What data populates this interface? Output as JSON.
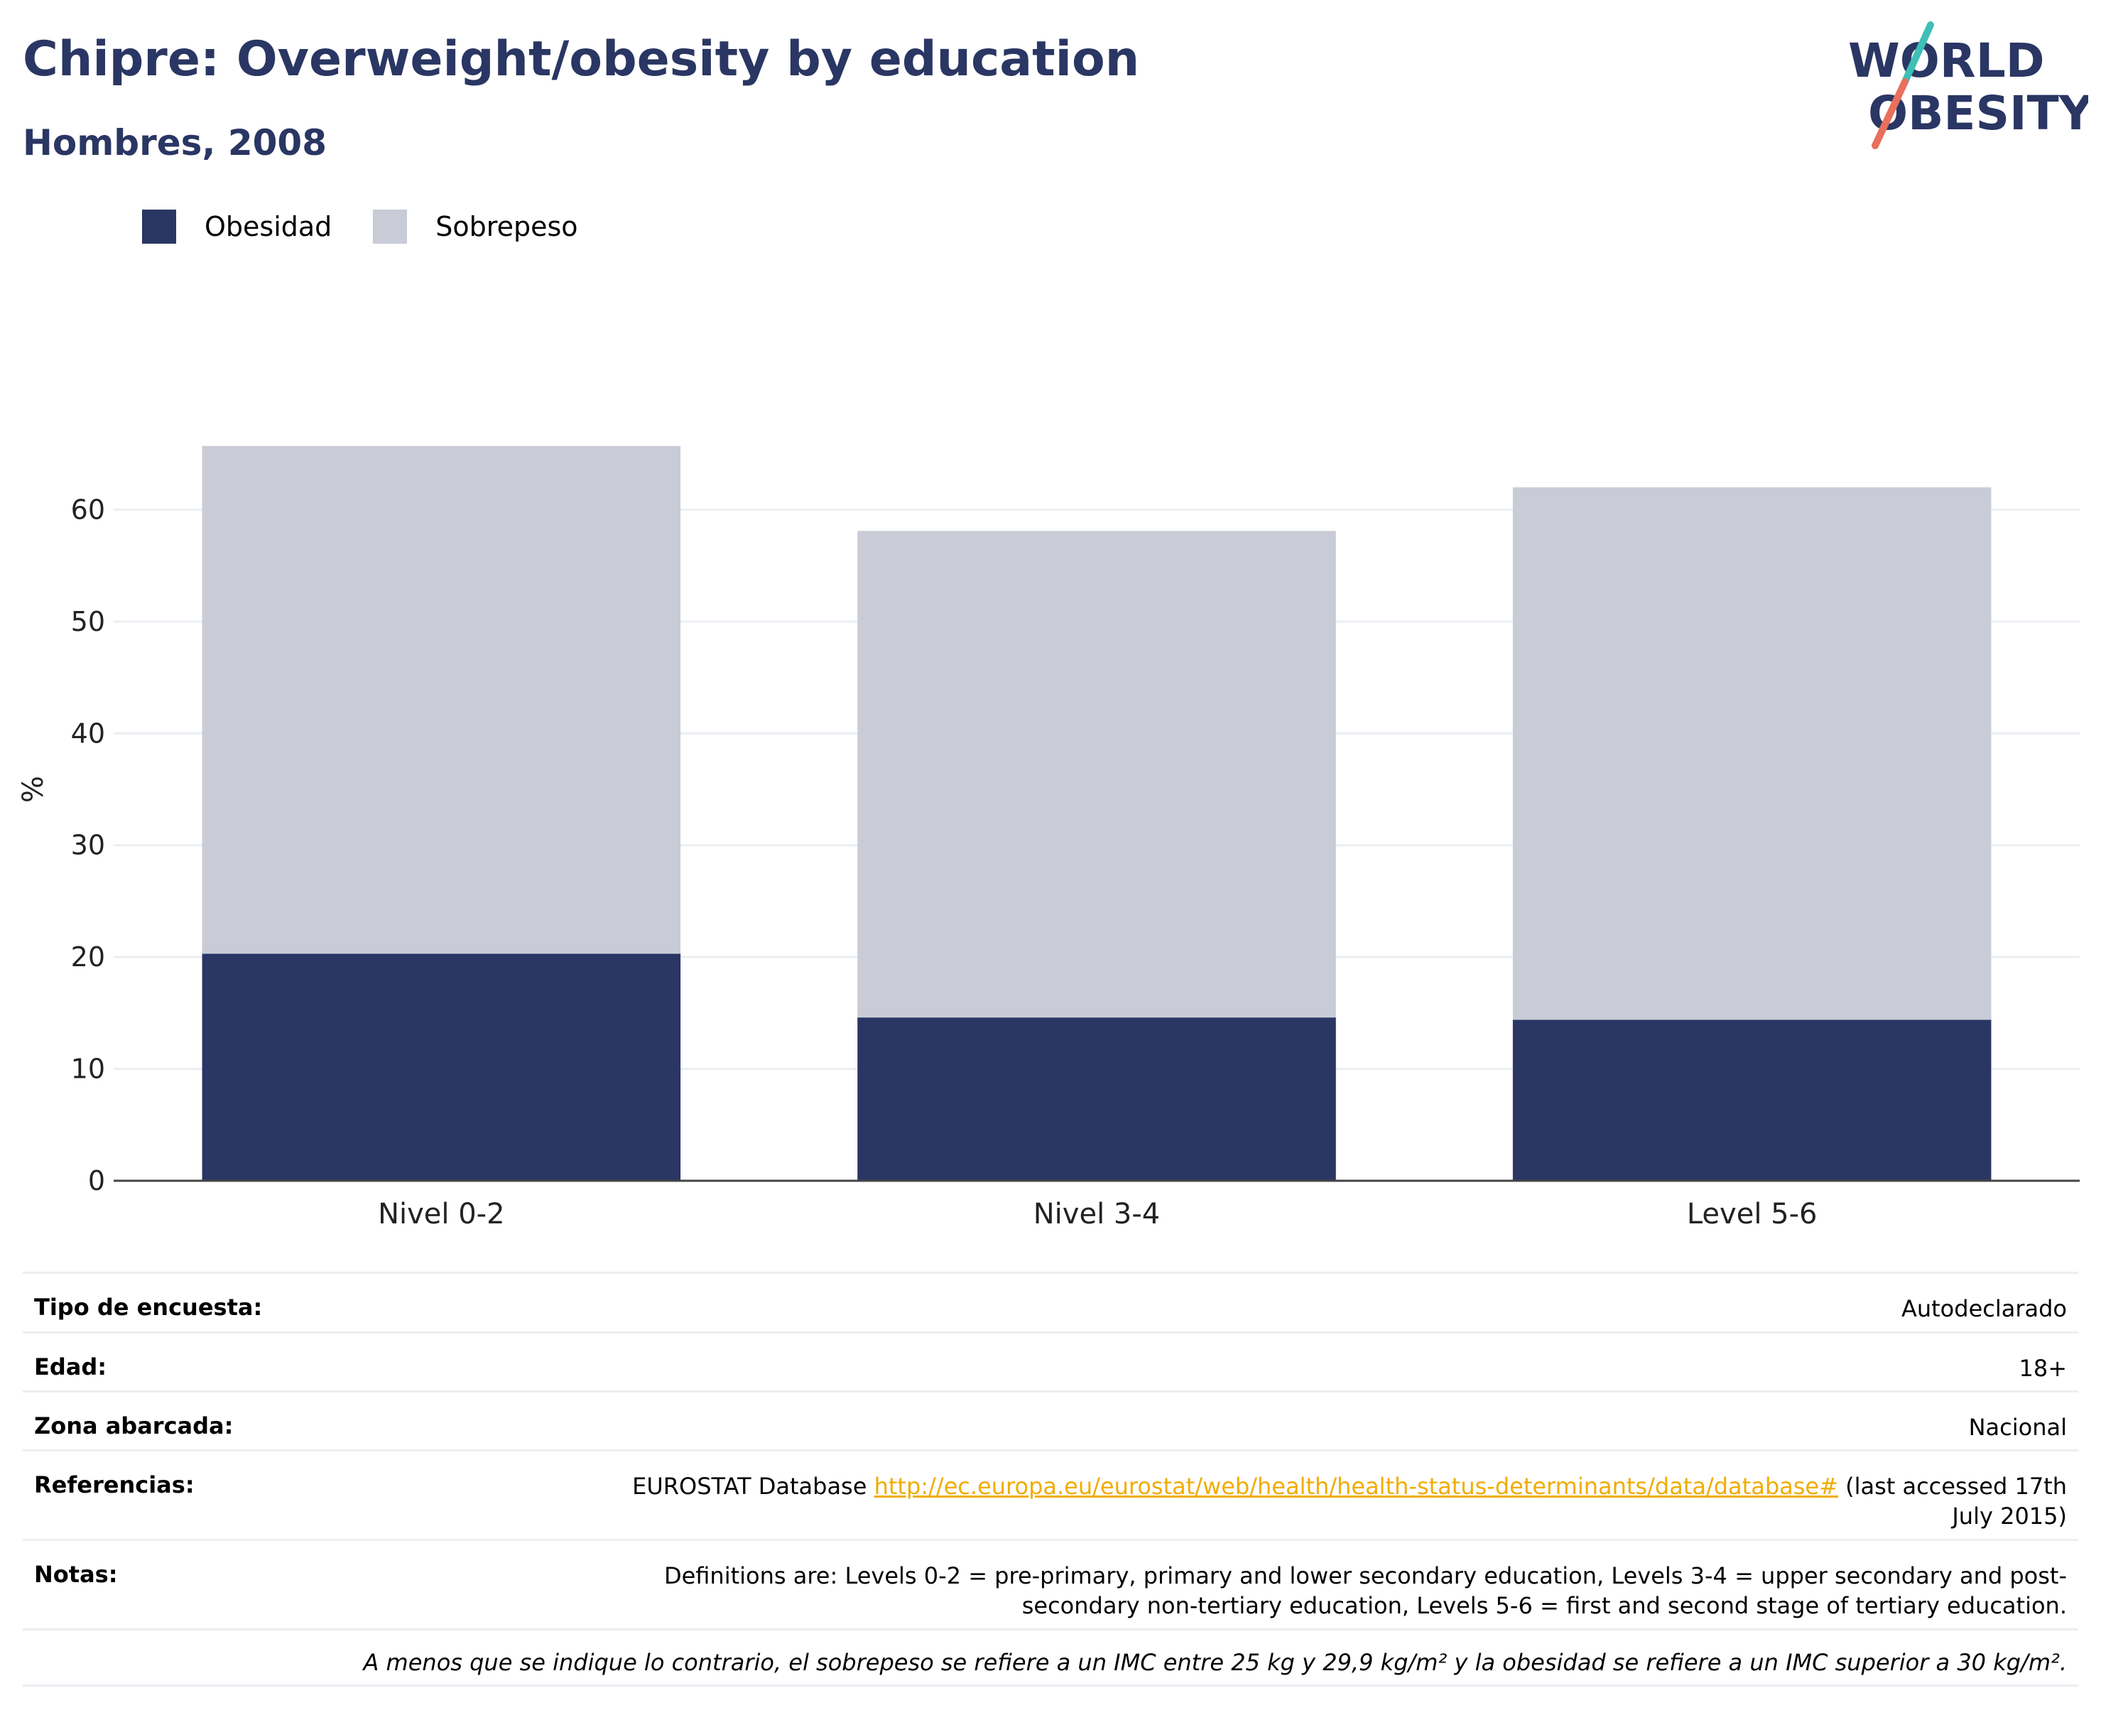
{
  "header": {
    "title": "Chipre: Overweight/obesity by education",
    "subtitle": "Hombres, 2008"
  },
  "logo": {
    "line1": "WORLD",
    "line2": "OBESITY"
  },
  "colors": {
    "obesity": "#2a3663",
    "overweight": "#c9ccd7",
    "accent_teal": "#3fbfb6",
    "accent_red": "#e8705d",
    "link": "#f0ac00"
  },
  "legend": [
    {
      "label": "Obesidad",
      "color": "#2a3663"
    },
    {
      "label": "Sobrepeso",
      "color": "#c9ccd7"
    }
  ],
  "chart_data": {
    "type": "bar",
    "stacked": true,
    "categories": [
      "Nivel 0-2",
      "Nivel 3-4",
      "Level 5-6"
    ],
    "series": [
      {
        "name": "Obesidad",
        "values": [
          20.3,
          14.6,
          14.4
        ]
      },
      {
        "name": "Sobrepeso",
        "values": [
          45.4,
          43.5,
          47.6
        ]
      }
    ],
    "ylabel": "%",
    "ylim": [
      0,
      70
    ],
    "yticks": [
      0,
      10,
      20,
      30,
      40,
      50,
      60
    ],
    "grid": true,
    "legend_position": "top-left"
  },
  "meta": {
    "rows": [
      {
        "key": "Tipo de encuesta:",
        "value": "Autodeclarado"
      },
      {
        "key": "Edad:",
        "value": "18+"
      },
      {
        "key": "Zona abarcada:",
        "value": "Nacional"
      }
    ],
    "references": {
      "key": "Referencias:",
      "prefix": "EUROSTAT Database ",
      "link": "http://ec.europa.eu/eurostat/web/health/health-status-determinants/data/database#",
      "suffix": " (last accessed 17th July 2015)"
    },
    "notes": {
      "key": "Notas:",
      "value": "Definitions are: Levels 0-2 = pre-primary, primary and lower secondary education, Levels 3-4 = upper secondary and post-secondary non-tertiary education, Levels 5-6 = first and second stage of tertiary education."
    },
    "footnote": "A menos que se indique lo contrario, el sobrepeso se refiere a un IMC entre 25 kg y 29,9 kg/m² y la obesidad se refiere a un IMC superior a 30 kg/m²."
  }
}
